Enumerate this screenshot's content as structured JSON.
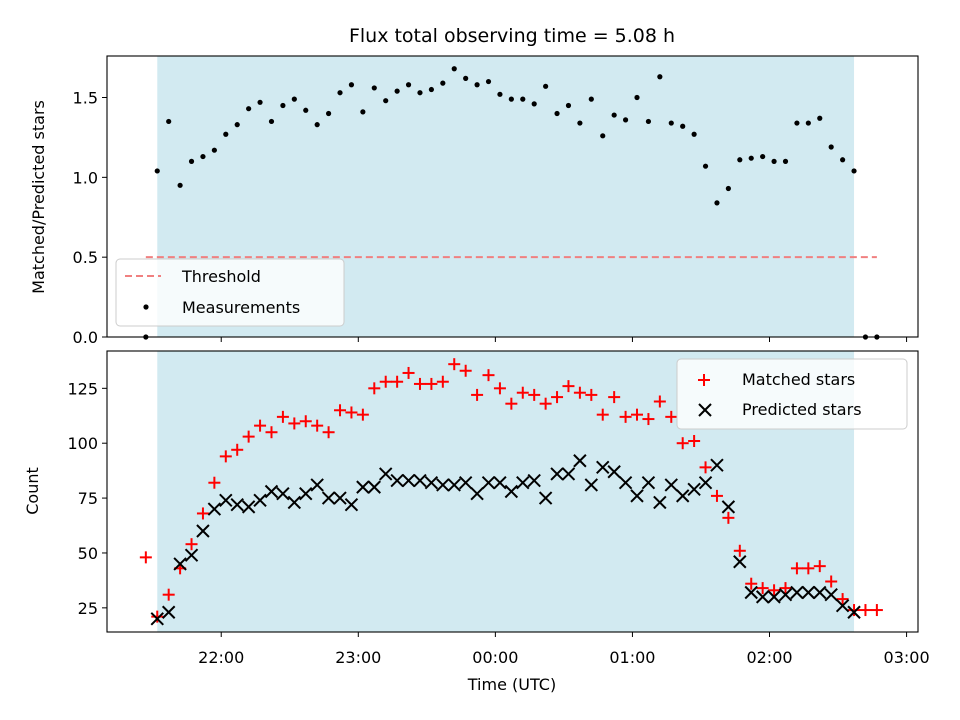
{
  "title": "Flux total observing time = 5.08 h",
  "colors": {
    "band": "#add8e6",
    "threshold": "#f08080",
    "matched": "#ff0000",
    "predicted": "#000000",
    "measurement": "#000000"
  },
  "chart_data": [
    {
      "type": "scatter",
      "title": "Flux total observing time = 5.08 h",
      "ylabel": "Matched/Predicted stars",
      "xlabel": "",
      "ylim": [
        0,
        1.76
      ],
      "xlim": [
        "21:10",
        "03:05"
      ],
      "yticks": [
        0.0,
        0.5,
        1.0,
        1.5
      ],
      "ytick_labels": [
        "0.0",
        "0.5",
        "1.0",
        "1.5"
      ],
      "observing_window": [
        "21:32",
        "02:37"
      ],
      "grid": false,
      "legend_position": "lower left",
      "threshold": {
        "name": "Threshold",
        "value": 0.5,
        "x_range": [
          "21:27",
          "02:47"
        ]
      },
      "series": [
        {
          "name": "Measurements",
          "x": [
            "21:27",
            "21:32",
            "21:37",
            "21:42",
            "21:47",
            "21:52",
            "21:57",
            "22:02",
            "22:07",
            "22:12",
            "22:17",
            "22:22",
            "22:27",
            "22:32",
            "22:37",
            "22:42",
            "22:47",
            "22:52",
            "22:57",
            "23:02",
            "23:07",
            "23:12",
            "23:17",
            "23:22",
            "23:27",
            "23:32",
            "23:37",
            "23:42",
            "23:47",
            "23:52",
            "23:57",
            "00:02",
            "00:07",
            "00:12",
            "00:17",
            "00:22",
            "00:27",
            "00:32",
            "00:37",
            "00:42",
            "00:47",
            "00:52",
            "00:57",
            "01:02",
            "01:07",
            "01:12",
            "01:17",
            "01:22",
            "01:27",
            "01:32",
            "01:37",
            "01:42",
            "01:47",
            "01:52",
            "01:57",
            "02:02",
            "02:07",
            "02:12",
            "02:17",
            "02:22",
            "02:27",
            "02:32",
            "02:37",
            "02:42",
            "02:47"
          ],
          "values": [
            0.0,
            1.04,
            1.35,
            0.95,
            1.1,
            1.13,
            1.17,
            1.27,
            1.33,
            1.43,
            1.47,
            1.35,
            1.45,
            1.49,
            1.42,
            1.33,
            1.4,
            1.53,
            1.58,
            1.41,
            1.56,
            1.48,
            1.54,
            1.58,
            1.53,
            1.55,
            1.59,
            1.68,
            1.62,
            1.58,
            1.6,
            1.52,
            1.49,
            1.49,
            1.46,
            1.57,
            1.4,
            1.45,
            1.34,
            1.49,
            1.26,
            1.39,
            1.36,
            1.5,
            1.35,
            1.63,
            1.34,
            1.32,
            1.27,
            1.07,
            0.84,
            0.93,
            1.11,
            1.12,
            1.13,
            1.1,
            1.1,
            1.34,
            1.34,
            1.37,
            1.19,
            1.11,
            1.04,
            0.0,
            0.0
          ]
        }
      ]
    },
    {
      "type": "scatter",
      "title": "",
      "xlabel": "Time (UTC)",
      "ylabel": "Count",
      "ylim": [
        14,
        142
      ],
      "xlim": [
        "21:10",
        "03:05"
      ],
      "xticks": [
        "22:00",
        "23:00",
        "00:00",
        "01:00",
        "02:00",
        "03:00"
      ],
      "yticks": [
        25,
        50,
        75,
        100,
        125
      ],
      "ytick_labels": [
        "25",
        "50",
        "75",
        "100",
        "125"
      ],
      "observing_window": [
        "21:32",
        "02:37"
      ],
      "grid": false,
      "legend_position": "upper right",
      "series": [
        {
          "name": "Matched stars",
          "marker": "plus",
          "x": [
            "21:27",
            "21:32",
            "21:37",
            "21:42",
            "21:47",
            "21:52",
            "21:57",
            "22:02",
            "22:07",
            "22:12",
            "22:17",
            "22:22",
            "22:27",
            "22:32",
            "22:37",
            "22:42",
            "22:47",
            "22:52",
            "22:57",
            "23:02",
            "23:07",
            "23:12",
            "23:17",
            "23:22",
            "23:27",
            "23:32",
            "23:37",
            "23:42",
            "23:47",
            "23:52",
            "23:57",
            "00:02",
            "00:07",
            "00:12",
            "00:17",
            "00:22",
            "00:27",
            "00:32",
            "00:37",
            "00:42",
            "00:47",
            "00:52",
            "00:57",
            "01:02",
            "01:07",
            "01:12",
            "01:17",
            "01:22",
            "01:27",
            "01:32",
            "01:37",
            "01:42",
            "01:47",
            "01:52",
            "01:57",
            "02:02",
            "02:07",
            "02:12",
            "02:17",
            "02:22",
            "02:27",
            "02:32",
            "02:37",
            "02:42",
            "02:47"
          ],
          "values": [
            48,
            21,
            31,
            43,
            54,
            68,
            82,
            94,
            97,
            103,
            108,
            105,
            112,
            109,
            110,
            108,
            105,
            115,
            114,
            113,
            125,
            128,
            128,
            132,
            127,
            127,
            128,
            136,
            133,
            122,
            131,
            125,
            118,
            123,
            122,
            118,
            121,
            126,
            123,
            122,
            113,
            121,
            112,
            113,
            111,
            119,
            112,
            100,
            101,
            89,
            76,
            66,
            51,
            36,
            34,
            33,
            34,
            43,
            43,
            44,
            37,
            29,
            24,
            24,
            24
          ]
        },
        {
          "name": "Predicted stars",
          "marker": "x",
          "x": [
            "21:32",
            "21:37",
            "21:42",
            "21:47",
            "21:52",
            "21:57",
            "22:02",
            "22:07",
            "22:12",
            "22:17",
            "22:22",
            "22:27",
            "22:32",
            "22:37",
            "22:42",
            "22:47",
            "22:52",
            "22:57",
            "23:02",
            "23:07",
            "23:12",
            "23:17",
            "23:22",
            "23:27",
            "23:32",
            "23:37",
            "23:42",
            "23:47",
            "23:52",
            "23:57",
            "00:02",
            "00:07",
            "00:12",
            "00:17",
            "00:22",
            "00:27",
            "00:32",
            "00:37",
            "00:42",
            "00:47",
            "00:52",
            "00:57",
            "01:02",
            "01:07",
            "01:12",
            "01:17",
            "01:22",
            "01:27",
            "01:32",
            "01:37",
            "01:42",
            "01:47",
            "01:52",
            "01:57",
            "02:02",
            "02:07",
            "02:12",
            "02:17",
            "02:22",
            "02:27",
            "02:32",
            "02:37"
          ],
          "values": [
            20,
            23,
            45,
            49,
            60,
            70,
            74,
            72,
            71,
            74,
            78,
            77,
            73,
            77,
            81,
            75,
            75,
            72,
            80,
            80,
            86,
            83,
            83,
            83,
            82,
            81,
            81,
            82,
            77,
            82,
            82,
            78,
            82,
            83,
            75,
            86,
            86,
            92,
            81,
            89,
            87,
            82,
            76,
            82,
            73,
            81,
            76,
            79,
            82,
            90,
            71,
            46,
            32,
            30,
            30,
            31,
            32,
            32,
            32,
            31,
            26,
            23
          ]
        }
      ]
    }
  ]
}
